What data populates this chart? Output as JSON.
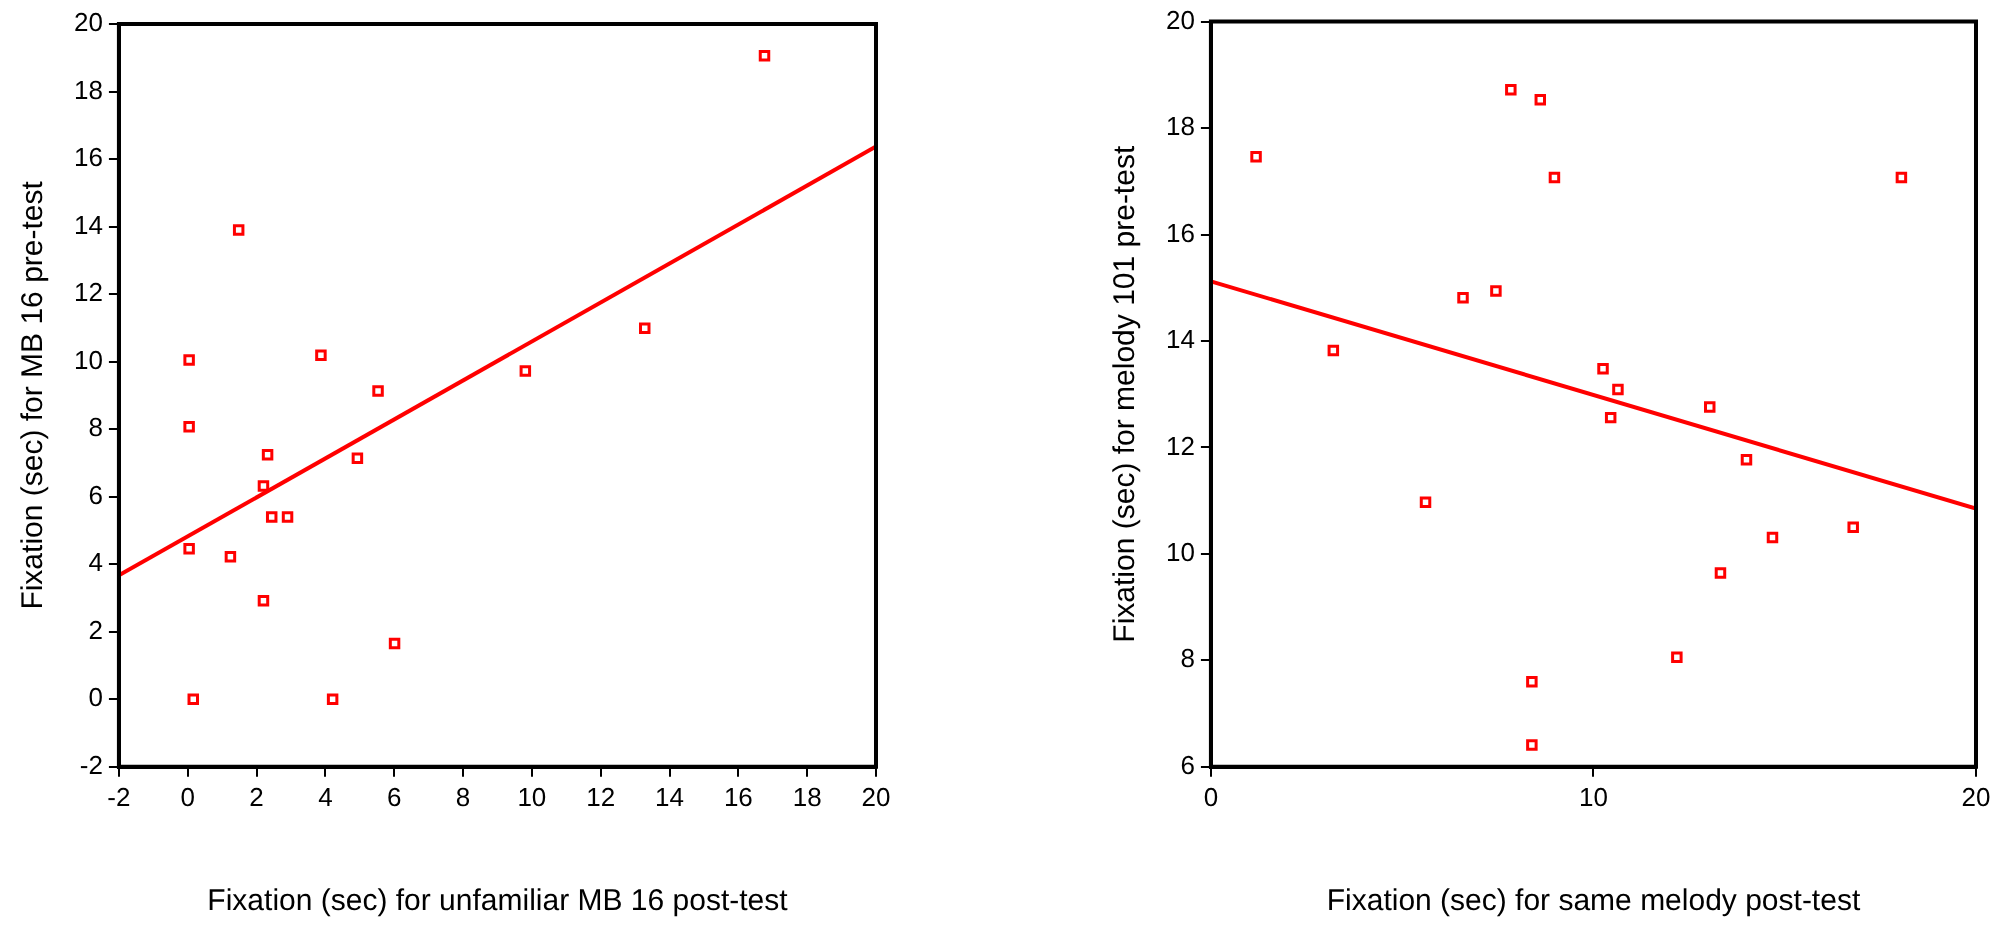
{
  "chart_data": [
    {
      "type": "scatter",
      "xlabel": "Fixation (sec) for unfamiliar MB 16 post-test",
      "ylabel": "Fixation (sec) for MB 16 pre-test",
      "xlim": [
        -2,
        20
      ],
      "xticks": [
        -2,
        0,
        2,
        4,
        6,
        8,
        10,
        12,
        14,
        16,
        18,
        20
      ],
      "ylim": [
        -2,
        20
      ],
      "yticks": [
        -2,
        0,
        2,
        4,
        6,
        8,
        10,
        12,
        14,
        16,
        18,
        20
      ],
      "grid": false,
      "legend": false,
      "series": [
        {
          "type": "scatter",
          "marker": "square",
          "color": "#ff0000",
          "x": [
            16.76,
            1.48,
            0.04,
            3.87,
            5.53,
            9.81,
            13.28,
            0.04,
            2.32,
            4.93,
            2.2,
            2.44,
            2.9,
            0.04,
            1.24,
            2.2,
            6.01,
            0.16,
            4.21
          ],
          "values": [
            19.06,
            13.9,
            10.05,
            10.19,
            9.13,
            9.72,
            10.99,
            8.07,
            7.24,
            7.14,
            6.32,
            5.4,
            5.4,
            4.46,
            4.22,
            2.92,
            1.65,
            0,
            0
          ]
        },
        {
          "type": "line",
          "color": "#ff0000",
          "x": [
            -2,
            20
          ],
          "values": [
            3.67,
            16.37
          ]
        }
      ]
    },
    {
      "type": "scatter",
      "xlabel": "Fixation (sec) for same melody post-test",
      "ylabel": "Fixation (sec) for melody 101 pre-test",
      "xlim": [
        0,
        20
      ],
      "xticks": [
        0,
        10,
        20
      ],
      "ylim": [
        6,
        20
      ],
      "yticks": [
        6,
        8,
        10,
        12,
        14,
        16,
        18,
        20
      ],
      "grid": false,
      "legend": false,
      "series": [
        {
          "type": "scatter",
          "marker": "square",
          "color": "#ff0000",
          "x": [
            1.18,
            7.84,
            8.61,
            8.98,
            18.05,
            6.59,
            7.45,
            3.2,
            10.25,
            10.64,
            10.45,
            13.04,
            14.0,
            5.61,
            16.79,
            14.68,
            13.32,
            12.18,
            8.39,
            8.39
          ],
          "values": [
            17.46,
            18.72,
            18.53,
            17.07,
            17.07,
            14.81,
            14.94,
            13.82,
            13.48,
            13.09,
            12.56,
            12.76,
            11.77,
            10.97,
            10.5,
            10.31,
            9.64,
            8.06,
            7.6,
            6.41
          ]
        },
        {
          "type": "line",
          "color": "#ff0000",
          "x": [
            0,
            20
          ],
          "values": [
            15.12,
            10.85
          ]
        }
      ]
    }
  ]
}
